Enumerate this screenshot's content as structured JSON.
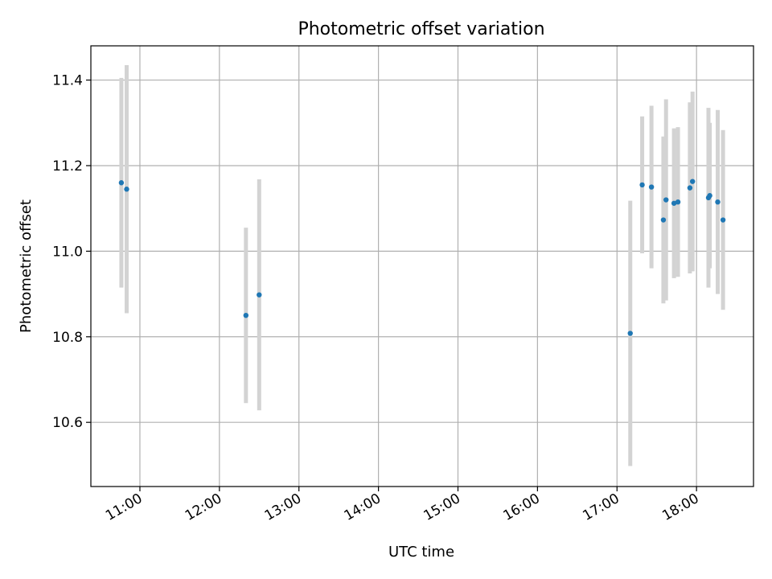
{
  "chart_data": {
    "type": "scatter",
    "title": "Photometric offset variation",
    "xlabel": "UTC time",
    "ylabel": "Photometric offset",
    "x_ticks": [
      "11:00",
      "12:00",
      "13:00",
      "14:00",
      "15:00",
      "16:00",
      "17:00",
      "18:00"
    ],
    "y_ticks": [
      "10.6",
      "10.8",
      "11.0",
      "11.2",
      "11.4"
    ],
    "xlim": [
      "10:23",
      "18:43"
    ],
    "ylim": [
      10.45,
      11.48
    ],
    "grid": true,
    "colors": {
      "point": "#1f77b4",
      "errorbar": "#d3d3d3",
      "grid": "#b0b0b0"
    },
    "points": [
      {
        "x": "10:46",
        "y": 11.16,
        "yerr": 0.245
      },
      {
        "x": "10:50",
        "y": 11.145,
        "yerr": 0.29
      },
      {
        "x": "12:20",
        "y": 10.85,
        "yerr": 0.205
      },
      {
        "x": "12:30",
        "y": 10.898,
        "yerr": 0.27
      },
      {
        "x": "17:10",
        "y": 10.808,
        "yerr": 0.31
      },
      {
        "x": "17:19",
        "y": 11.155,
        "yerr": 0.16
      },
      {
        "x": "17:26",
        "y": 11.15,
        "yerr": 0.19
      },
      {
        "x": "17:35",
        "y": 11.073,
        "yerr": 0.195
      },
      {
        "x": "17:37",
        "y": 11.12,
        "yerr": 0.235
      },
      {
        "x": "17:43",
        "y": 11.112,
        "yerr": 0.175
      },
      {
        "x": "17:46",
        "y": 11.115,
        "yerr": 0.175
      },
      {
        "x": "17:55",
        "y": 11.148,
        "yerr": 0.2
      },
      {
        "x": "17:57",
        "y": 11.163,
        "yerr": 0.21
      },
      {
        "x": "18:09",
        "y": 11.125,
        "yerr": 0.21
      },
      {
        "x": "18:10",
        "y": 11.13,
        "yerr": 0.17
      },
      {
        "x": "18:16",
        "y": 11.115,
        "yerr": 0.215
      },
      {
        "x": "18:20",
        "y": 11.073,
        "yerr": 0.21
      }
    ]
  }
}
